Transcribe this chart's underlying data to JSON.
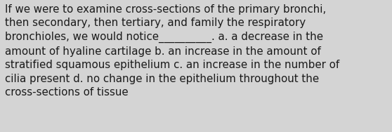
{
  "lines": [
    "If we were to examine cross-sections of the primary bronchi,",
    "then secondary, then tertiary, and family the respiratory",
    "bronchioles, we would notice__________. a. a decrease in the",
    "amount of hyaline cartilage b. an increase in the amount of",
    "stratified squamous epithelium c. an increase in the number of",
    "cilia present d. no change in the epithelium throughout the",
    "cross-sections of tissue"
  ],
  "background_color": "#d4d4d4",
  "text_color": "#1a1a1a",
  "font_size": 10.8,
  "fig_width": 5.58,
  "fig_height": 1.88,
  "dpi": 100
}
